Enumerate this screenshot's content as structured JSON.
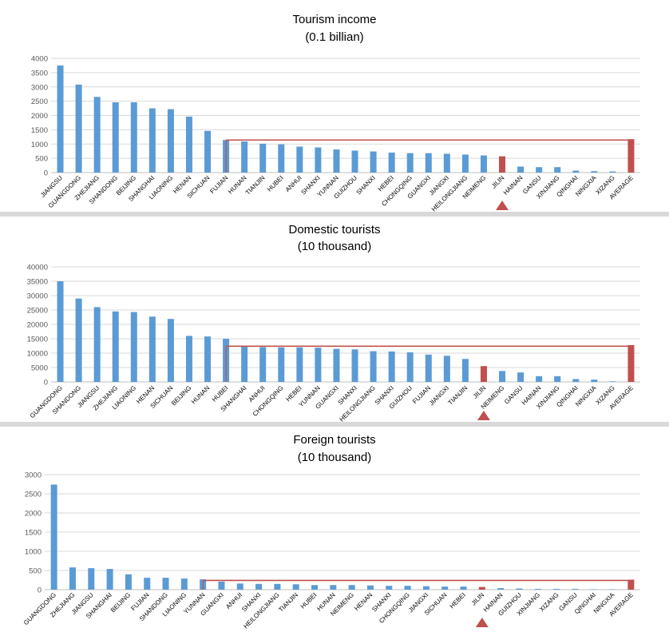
{
  "colors": {
    "bar": "#5b9bd5",
    "highlight": "#c0504d",
    "grid": "#d9d9d9",
    "axis_text": "#595959",
    "title": "#000000"
  },
  "chart_data": [
    {
      "type": "bar",
      "title": "Tourism income",
      "subtitle": "(0.1 billian)",
      "ylim": [
        0,
        4000
      ],
      "yticks": [
        0,
        500,
        1000,
        1500,
        2000,
        2500,
        3000,
        3500,
        4000
      ],
      "grid": true,
      "categories": [
        "JIANGSU",
        "GUANGDONG",
        "ZHEJIANG",
        "SHANDONG",
        "BEIJING",
        "SHANGHAI",
        "LIAONING",
        "HENAN",
        "SICHUAN",
        "FUJIAN",
        "HUNAN",
        "TIANJIN",
        "HUBEI",
        "ANHUI",
        "SHANXI",
        "YUNNAN",
        "GUIZHOU",
        "SHANXI",
        "HEBEI",
        "CHONGQING",
        "GUANGXI",
        "JIANGXI",
        "HEILONGJIANG",
        "NEIMENG",
        "JILIN",
        "HAINAN",
        "GANSU",
        "XINJIANG",
        "QINGHAI",
        "NINGXIA",
        "XIZANG",
        "AVERAGE"
      ],
      "values": [
        3750,
        3080,
        2650,
        2460,
        2460,
        2250,
        2220,
        1960,
        1460,
        1140,
        1090,
        1010,
        990,
        910,
        880,
        810,
        770,
        740,
        700,
        680,
        680,
        660,
        630,
        600,
        570,
        210,
        190,
        190,
        70,
        50,
        40,
        1170
      ],
      "highlight": [
        "JILIN",
        "AVERAGE"
      ],
      "average_line": 1140,
      "marker_at": "JILIN"
    },
    {
      "type": "bar",
      "title": "Domestic tourists",
      "subtitle": "(10 thousand)",
      "ylim": [
        0,
        40000
      ],
      "yticks": [
        0,
        5000,
        10000,
        15000,
        20000,
        25000,
        30000,
        35000,
        40000
      ],
      "grid": true,
      "categories": [
        "GUANGDONG",
        "SHANDONG",
        "JIANGSU",
        "ZHEJIANG",
        "LIAONING",
        "HENAN",
        "SICHUAN",
        "BEIJING",
        "HUNAN",
        "HUBEI",
        "SHANGHAI",
        "ANHUI",
        "CHONGQING",
        "HEBEI",
        "YUNNAN",
        "GUANGXI",
        "SHANXI",
        "HEILONGJIANG",
        "SHANXI",
        "GUIZHOU",
        "FUJIAN",
        "JIANGXI",
        "TIANJIN",
        "JILIN",
        "NEIMENG",
        "GANSU",
        "HAINAN",
        "XINJIANG",
        "QINGHAI",
        "NINGXIA",
        "XIZANG",
        "AVERAGE"
      ],
      "values": [
        35000,
        29000,
        26000,
        24500,
        24300,
        22700,
        21900,
        16000,
        15800,
        15000,
        12200,
        12100,
        12000,
        12000,
        11900,
        11500,
        11300,
        10700,
        10600,
        10300,
        9500,
        9100,
        8000,
        5500,
        3800,
        3300,
        2000,
        2000,
        1000,
        800,
        200,
        12800
      ],
      "highlight": [
        "JILIN",
        "AVERAGE"
      ],
      "average_line": 12400,
      "marker_at": "JILIN"
    },
    {
      "type": "bar",
      "title": "Foreign tourists",
      "subtitle": "(10 thousand)",
      "ylim": [
        0,
        3000
      ],
      "yticks": [
        0,
        500,
        1000,
        1500,
        2000,
        2500,
        3000
      ],
      "grid": true,
      "categories": [
        "GUANGDONG",
        "ZHEJIANG",
        "JIANGSU",
        "SHANGHAI",
        "BEIJING",
        "FUJIAN",
        "SHANDONG",
        "LIAONING",
        "YUNNAN",
        "GUANGXI",
        "ANHUI",
        "SHANXI",
        "HEILONGJIANG",
        "TIANJIN",
        "HUBEI",
        "HUNAN",
        "NEIMENG",
        "HENAN",
        "SHANXI",
        "CHONGQING",
        "JIANGXI",
        "SICHUAN",
        "HEBEI",
        "JILIN",
        "HAINAN",
        "GUIZHOU",
        "XINJIANG",
        "XIZANG",
        "GANSU",
        "QINGHAI",
        "NINGXIA",
        "AVERAGE"
      ],
      "values": [
        2740,
        580,
        560,
        540,
        400,
        310,
        310,
        290,
        270,
        210,
        160,
        150,
        150,
        140,
        120,
        120,
        120,
        110,
        100,
        100,
        90,
        80,
        80,
        70,
        40,
        30,
        20,
        20,
        20,
        10,
        10,
        260
      ],
      "highlight": [
        "JILIN",
        "AVERAGE"
      ],
      "average_line": 240,
      "marker_at": "JILIN"
    }
  ]
}
